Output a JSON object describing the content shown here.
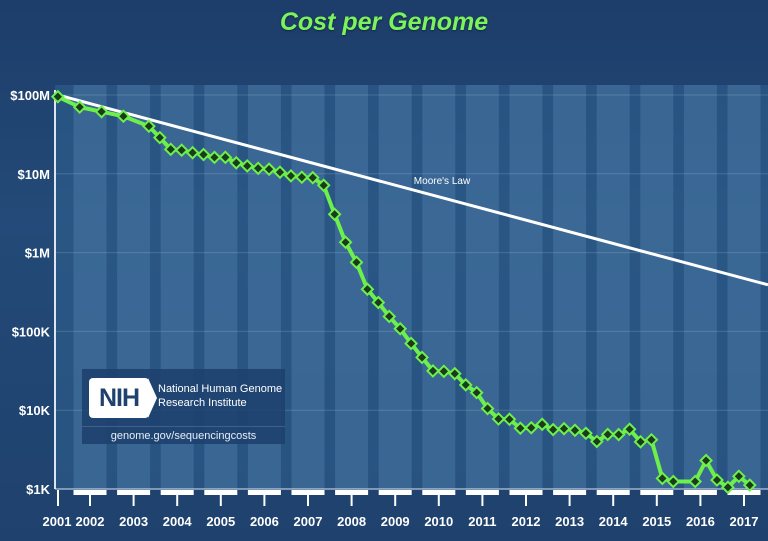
{
  "chart_data": {
    "type": "line",
    "title": "Cost per Genome",
    "xlabel": "",
    "ylabel": "",
    "yscale": "log",
    "ylim": [
      1000,
      100000000
    ],
    "y_ticks": [
      {
        "value": 100000000,
        "label": "$100M"
      },
      {
        "value": 10000000,
        "label": "$10M"
      },
      {
        "value": 1000000,
        "label": "$1M"
      },
      {
        "value": 100000,
        "label": "$100K"
      },
      {
        "value": 10000,
        "label": "$10K"
      },
      {
        "value": 1000,
        "label": "$1K"
      }
    ],
    "x_tick_labels": [
      "2001",
      "2002",
      "2003",
      "2004",
      "2005",
      "2006",
      "2007",
      "2008",
      "2009",
      "2010",
      "2011",
      "2012",
      "2013",
      "2014",
      "2015",
      "2016",
      "2017"
    ],
    "grid": true,
    "colors": {
      "series": "#6ef04c",
      "marker": "#1c3a1c",
      "moore": "#ffffff",
      "title": "#7cf35a"
    },
    "series": [
      {
        "name": "",
        "points": [
          [
            "2001-09",
            95263072
          ],
          [
            "2002-03",
            70175437
          ],
          [
            "2002-09",
            61448422
          ],
          [
            "2003-03",
            53751684
          ],
          [
            "2003-10",
            40153384
          ],
          [
            "2004-01",
            28780376
          ],
          [
            "2004-04",
            20442576
          ],
          [
            "2004-07",
            19934346
          ],
          [
            "2004-10",
            18519312
          ],
          [
            "2005-01",
            17534970
          ],
          [
            "2005-04",
            16159699
          ],
          [
            "2005-07",
            16180224
          ],
          [
            "2005-10",
            13801124
          ],
          [
            "2006-01",
            12585659
          ],
          [
            "2006-04",
            11732535
          ],
          [
            "2006-07",
            11455315
          ],
          [
            "2006-10",
            10474556
          ],
          [
            "2007-01",
            9408739
          ],
          [
            "2007-04",
            9047003
          ],
          [
            "2007-07",
            8927342
          ],
          [
            "2007-10",
            7147571
          ],
          [
            "2008-01",
            3063820
          ],
          [
            "2008-04",
            1352982
          ],
          [
            "2008-07",
            752080
          ],
          [
            "2008-10",
            342502
          ],
          [
            "2009-01",
            232735
          ],
          [
            "2009-04",
            154714
          ],
          [
            "2009-07",
            108065
          ],
          [
            "2009-10",
            70333
          ],
          [
            "2010-01",
            46774
          ],
          [
            "2010-04",
            31512
          ],
          [
            "2010-07",
            31125
          ],
          [
            "2010-10",
            29092
          ],
          [
            "2011-01",
            20963
          ],
          [
            "2011-04",
            16712
          ],
          [
            "2011-07",
            10497
          ],
          [
            "2011-10",
            7743
          ],
          [
            "2012-01",
            7666
          ],
          [
            "2012-04",
            5901
          ],
          [
            "2012-07",
            5985
          ],
          [
            "2012-10",
            6618
          ],
          [
            "2013-01",
            5671
          ],
          [
            "2013-04",
            5826
          ],
          [
            "2013-07",
            5550
          ],
          [
            "2013-10",
            5096
          ],
          [
            "2014-01",
            4008
          ],
          [
            "2014-04",
            4920
          ],
          [
            "2014-07",
            4905
          ],
          [
            "2014-10",
            5731
          ],
          [
            "2015-01",
            3970
          ],
          [
            "2015-04",
            4211
          ],
          [
            "2015-07",
            1363
          ],
          [
            "2015-10",
            1245
          ],
          [
            "2016-04",
            1245
          ],
          [
            "2016-07",
            2300
          ],
          [
            "2016-10",
            1300
          ],
          [
            "2017-01",
            1050
          ],
          [
            "2017-04",
            1450
          ],
          [
            "2017-07",
            1120
          ]
        ]
      },
      {
        "name": "Moore's Law",
        "points": [
          [
            "2001-09",
            100000000
          ],
          [
            "2017-12",
            390000
          ]
        ]
      }
    ]
  },
  "legend_box": {
    "logo_text": "NIH",
    "org_name": "National Human Genome Research Institute",
    "url": "genome.gov/sequencingcosts"
  }
}
